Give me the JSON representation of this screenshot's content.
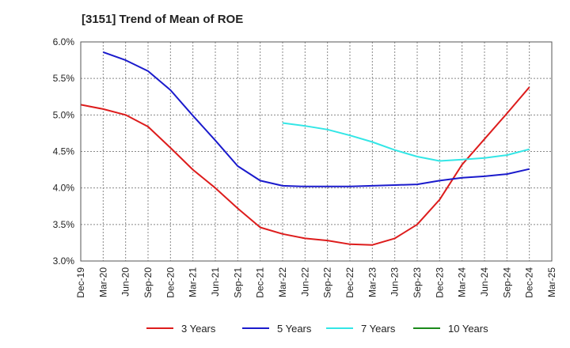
{
  "chart_data": {
    "type": "line",
    "title": "[3151]  Trend of Mean of ROE",
    "x_labels": [
      "Dec-19",
      "Mar-20",
      "Jun-20",
      "Sep-20",
      "Dec-20",
      "Mar-21",
      "Jun-21",
      "Sep-21",
      "Dec-21",
      "Mar-22",
      "Jun-22",
      "Sep-22",
      "Dec-22",
      "Mar-23",
      "Jun-23",
      "Sep-23",
      "Dec-23",
      "Mar-24",
      "Jun-24",
      "Sep-24",
      "Dec-24",
      "Mar-25"
    ],
    "y_ticks": [
      "3.0%",
      "3.5%",
      "4.0%",
      "4.5%",
      "5.0%",
      "5.5%",
      "6.0%"
    ],
    "ylim": [
      3.0,
      6.0
    ],
    "grid": true,
    "legend_position": "bottom",
    "series": [
      {
        "name": "3 Years",
        "color": "#dd1c1c",
        "start_index": 0,
        "values": [
          5.14,
          5.08,
          5.0,
          4.84,
          4.55,
          4.25,
          4.0,
          3.72,
          3.46,
          3.37,
          3.31,
          3.28,
          3.23,
          3.22,
          3.31,
          3.5,
          3.84,
          4.32,
          4.67,
          5.02,
          5.38
        ]
      },
      {
        "name": "5 Years",
        "color": "#1a1acc",
        "start_index": 1,
        "values": [
          5.86,
          5.75,
          5.6,
          5.34,
          4.99,
          4.65,
          4.3,
          4.1,
          4.03,
          4.02,
          4.02,
          4.02,
          4.03,
          4.04,
          4.05,
          4.1,
          4.14,
          4.16,
          4.19,
          4.26
        ]
      },
      {
        "name": "7 Years",
        "color": "#33e6e6",
        "start_index": 9,
        "values": [
          4.89,
          4.85,
          4.8,
          4.72,
          4.63,
          4.52,
          4.43,
          4.37,
          4.39,
          4.41,
          4.45,
          4.53
        ]
      },
      {
        "name": "10 Years",
        "color": "#1a8a1a",
        "start_index": 0,
        "values": []
      }
    ]
  }
}
